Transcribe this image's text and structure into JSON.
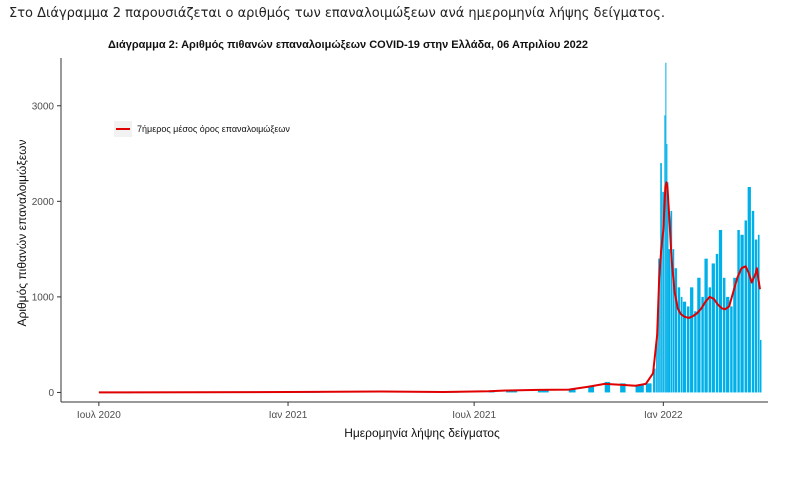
{
  "intro_text": "Στο Διάγραμμα 2 παρουσιάζεται ο αριθμός των επαναλοιμώξεων ανά ημερομηνία λήψης δείγματος.",
  "colors": {
    "bars": "#00b0e8",
    "line": "#e00000",
    "axis": "#333333"
  },
  "chart_data": {
    "type": "bar",
    "title": "Διάγραμμα 2: Αριθμός πιθανών επαναλοιμώξεων COVID-19 στην Ελλάδα, 06 Απριλίου 2022",
    "xlabel": "Ημερομηνία λήψης δείγματος",
    "ylabel": "Αριθμός πιθανών επαναλοιμώξεων",
    "x_range": [
      "2020-06-01",
      "2022-04-06"
    ],
    "ylim": [
      -100,
      3500
    ],
    "x_ticks": [
      {
        "date": "2020-07-01",
        "label": "Ιουλ 2020"
      },
      {
        "date": "2021-01-01",
        "label": "Ιαν 2021"
      },
      {
        "date": "2021-07-01",
        "label": "Ιουλ 2021"
      },
      {
        "date": "2022-01-01",
        "label": "Ιαν 2022"
      }
    ],
    "y_ticks": [
      0,
      1000,
      2000,
      3000
    ],
    "grid": false,
    "legend": {
      "position": "top-left",
      "entries": [
        {
          "label": "7ήμερος μέσος όρος επαναλοιμώξεων",
          "color": "#e00000"
        }
      ]
    },
    "series": [
      {
        "kind": "bar",
        "color": "#00b0e8",
        "points": [
          {
            "x": "2020-07-01",
            "y": 1
          },
          {
            "x": "2020-10-01",
            "y": 3
          },
          {
            "x": "2021-01-01",
            "y": 5
          },
          {
            "x": "2021-04-01",
            "y": 12
          },
          {
            "x": "2021-06-01",
            "y": 6
          },
          {
            "x": "2021-07-15",
            "y": 15
          },
          {
            "x": "2021-08-01",
            "y": 25
          },
          {
            "x": "2021-09-01",
            "y": 30
          },
          {
            "x": "2021-10-01",
            "y": 35
          },
          {
            "x": "2021-10-20",
            "y": 70
          },
          {
            "x": "2021-11-05",
            "y": 110
          },
          {
            "x": "2021-11-20",
            "y": 95
          },
          {
            "x": "2021-12-05",
            "y": 80
          },
          {
            "x": "2021-12-15",
            "y": 95
          },
          {
            "x": "2021-12-22",
            "y": 250
          },
          {
            "x": "2021-12-25",
            "y": 600
          },
          {
            "x": "2021-12-27",
            "y": 1400
          },
          {
            "x": "2021-12-29",
            "y": 2400
          },
          {
            "x": "2021-12-31",
            "y": 2100
          },
          {
            "x": "2022-01-02",
            "y": 2900
          },
          {
            "x": "2022-01-03",
            "y": 3450
          },
          {
            "x": "2022-01-04",
            "y": 2600
          },
          {
            "x": "2022-01-05",
            "y": 2200
          },
          {
            "x": "2022-01-06",
            "y": 1500
          },
          {
            "x": "2022-01-08",
            "y": 1900
          },
          {
            "x": "2022-01-10",
            "y": 1500
          },
          {
            "x": "2022-01-12",
            "y": 1300
          },
          {
            "x": "2022-01-15",
            "y": 1100
          },
          {
            "x": "2022-01-18",
            "y": 1000
          },
          {
            "x": "2022-01-20",
            "y": 950
          },
          {
            "x": "2022-01-24",
            "y": 900
          },
          {
            "x": "2022-01-27",
            "y": 1100
          },
          {
            "x": "2022-01-31",
            "y": 850
          },
          {
            "x": "2022-02-03",
            "y": 1200
          },
          {
            "x": "2022-02-07",
            "y": 1000
          },
          {
            "x": "2022-02-10",
            "y": 1400
          },
          {
            "x": "2022-02-14",
            "y": 1100
          },
          {
            "x": "2022-02-17",
            "y": 1350
          },
          {
            "x": "2022-02-21",
            "y": 1450
          },
          {
            "x": "2022-02-24",
            "y": 1700
          },
          {
            "x": "2022-02-28",
            "y": 1200
          },
          {
            "x": "2022-03-03",
            "y": 1000
          },
          {
            "x": "2022-03-07",
            "y": 900
          },
          {
            "x": "2022-03-10",
            "y": 1200
          },
          {
            "x": "2022-03-14",
            "y": 1700
          },
          {
            "x": "2022-03-17",
            "y": 1650
          },
          {
            "x": "2022-03-21",
            "y": 1800
          },
          {
            "x": "2022-03-24",
            "y": 2150
          },
          {
            "x": "2022-03-28",
            "y": 1900
          },
          {
            "x": "2022-03-31",
            "y": 1600
          },
          {
            "x": "2022-04-03",
            "y": 1650
          },
          {
            "x": "2022-04-05",
            "y": 550
          }
        ]
      },
      {
        "name": "7ήμερος μέσος όρος επαναλοιμώξεων",
        "kind": "line",
        "color": "#e00000",
        "points": [
          {
            "x": "2020-07-01",
            "y": 1
          },
          {
            "x": "2020-10-01",
            "y": 2
          },
          {
            "x": "2021-01-01",
            "y": 4
          },
          {
            "x": "2021-04-01",
            "y": 10
          },
          {
            "x": "2021-06-01",
            "y": 5
          },
          {
            "x": "2021-07-15",
            "y": 12
          },
          {
            "x": "2021-08-01",
            "y": 20
          },
          {
            "x": "2021-09-01",
            "y": 27
          },
          {
            "x": "2021-10-01",
            "y": 30
          },
          {
            "x": "2021-10-20",
            "y": 60
          },
          {
            "x": "2021-11-05",
            "y": 90
          },
          {
            "x": "2021-11-20",
            "y": 80
          },
          {
            "x": "2021-12-05",
            "y": 70
          },
          {
            "x": "2021-12-15",
            "y": 90
          },
          {
            "x": "2021-12-22",
            "y": 200
          },
          {
            "x": "2021-12-26",
            "y": 600
          },
          {
            "x": "2021-12-28",
            "y": 1200
          },
          {
            "x": "2021-12-30",
            "y": 1500
          },
          {
            "x": "2022-01-01",
            "y": 1700
          },
          {
            "x": "2022-01-03",
            "y": 2150
          },
          {
            "x": "2022-01-04",
            "y": 2200
          },
          {
            "x": "2022-01-05",
            "y": 2150
          },
          {
            "x": "2022-01-07",
            "y": 1800
          },
          {
            "x": "2022-01-09",
            "y": 1400
          },
          {
            "x": "2022-01-12",
            "y": 1050
          },
          {
            "x": "2022-01-15",
            "y": 880
          },
          {
            "x": "2022-01-18",
            "y": 820
          },
          {
            "x": "2022-01-22",
            "y": 790
          },
          {
            "x": "2022-01-26",
            "y": 780
          },
          {
            "x": "2022-01-30",
            "y": 800
          },
          {
            "x": "2022-02-03",
            "y": 830
          },
          {
            "x": "2022-02-07",
            "y": 880
          },
          {
            "x": "2022-02-11",
            "y": 950
          },
          {
            "x": "2022-02-15",
            "y": 1000
          },
          {
            "x": "2022-02-19",
            "y": 980
          },
          {
            "x": "2022-02-23",
            "y": 920
          },
          {
            "x": "2022-02-27",
            "y": 880
          },
          {
            "x": "2022-03-02",
            "y": 870
          },
          {
            "x": "2022-03-06",
            "y": 900
          },
          {
            "x": "2022-03-10",
            "y": 1050
          },
          {
            "x": "2022-03-14",
            "y": 1200
          },
          {
            "x": "2022-03-18",
            "y": 1300
          },
          {
            "x": "2022-03-22",
            "y": 1320
          },
          {
            "x": "2022-03-25",
            "y": 1250
          },
          {
            "x": "2022-03-28",
            "y": 1150
          },
          {
            "x": "2022-03-30",
            "y": 1200
          },
          {
            "x": "2022-04-01",
            "y": 1250
          },
          {
            "x": "2022-04-02",
            "y": 1300
          },
          {
            "x": "2022-04-03",
            "y": 1220
          },
          {
            "x": "2022-04-04",
            "y": 1150
          },
          {
            "x": "2022-04-05",
            "y": 1080
          }
        ]
      }
    ]
  }
}
